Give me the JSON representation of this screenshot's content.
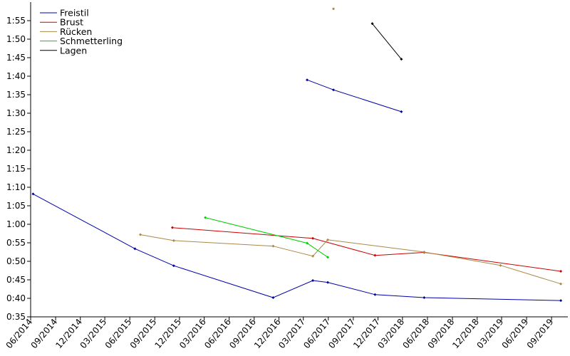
{
  "chart_data": {
    "type": "line",
    "title": "",
    "xlabel": "",
    "ylabel": "",
    "y_unit": "minutes:seconds",
    "xlim": [
      "2014-06-01",
      "2019-10-31"
    ],
    "ylim": [
      "0:35",
      "2:00"
    ],
    "x_ticks": [
      "06/2014",
      "09/2014",
      "12/2014",
      "03/2015",
      "06/2015",
      "09/2015",
      "12/2015",
      "03/2016",
      "06/2016",
      "09/2016",
      "12/2016",
      "03/2017",
      "06/2017",
      "09/2017",
      "12/2017",
      "03/2018",
      "06/2018",
      "09/2018",
      "12/2018",
      "03/2019",
      "06/2019",
      "09/2019"
    ],
    "y_ticks": [
      "0:35",
      "0:40",
      "0:45",
      "0:50",
      "0:55",
      "1:00",
      "1:05",
      "1:10",
      "1:15",
      "1:20",
      "1:25",
      "1:30",
      "1:35",
      "1:40",
      "1:45",
      "1:50",
      "1:55"
    ],
    "grid": false,
    "legend_position": "top-left",
    "series": [
      {
        "name": "Freistil",
        "color": "#0000aa",
        "segments": [
          [
            [
              "2014-06-10",
              "1:08.2"
            ],
            [
              "2015-06-20",
              "0:53.4"
            ],
            [
              "2015-11-10",
              "0:48.8"
            ],
            [
              "2016-11-10",
              "0:40.2"
            ],
            [
              "2017-04-05",
              "0:44.8"
            ],
            [
              "2017-05-30",
              "0:44.3"
            ],
            [
              "2017-11-20",
              "0:41.0"
            ],
            [
              "2018-05-20",
              "0:40.2"
            ],
            [
              "2019-10-05",
              "0:39.4"
            ]
          ],
          [
            [
              "2017-03-15",
              "1:39.0"
            ],
            [
              "2017-06-20",
              "1:36.3"
            ],
            [
              "2018-02-25",
              "1:30.4"
            ]
          ]
        ]
      },
      {
        "name": "Brust",
        "color": "#cc0000",
        "segments": [
          [
            [
              "2015-11-05",
              "0:59.1"
            ],
            [
              "2017-04-05",
              "0:56.2"
            ],
            [
              "2017-11-20",
              "0:51.6"
            ],
            [
              "2018-05-20",
              "0:52.4"
            ],
            [
              "2019-10-05",
              "0:47.3"
            ]
          ]
        ]
      },
      {
        "name": "Rücken",
        "color": "#aa8844",
        "segments": [
          [
            [
              "2015-07-10",
              "0:57.2"
            ],
            [
              "2015-11-10",
              "0:55.6"
            ],
            [
              "2016-11-10",
              "0:54.1"
            ],
            [
              "2017-04-05",
              "0:51.4"
            ],
            [
              "2017-05-30",
              "0:55.8"
            ],
            [
              "2018-05-20",
              "0:52.5"
            ],
            [
              "2019-02-25",
              "0:48.9"
            ],
            [
              "2019-10-05",
              "0:43.9"
            ]
          ],
          [
            [
              "2017-06-20",
              "1:58.2"
            ]
          ]
        ]
      },
      {
        "name": "Schmetterling",
        "color": "#00cc00",
        "segments": [
          [
            [
              "2016-03-05",
              "1:01.8"
            ],
            [
              "2017-03-15",
              "0:54.9"
            ],
            [
              "2017-05-30",
              "0:51.1"
            ]
          ]
        ]
      },
      {
        "name": "Lagen",
        "color": "#000000",
        "segments": [
          [
            [
              "2017-11-10",
              "1:54.2"
            ],
            [
              "2018-02-25",
              "1:44.6"
            ]
          ]
        ]
      }
    ]
  }
}
